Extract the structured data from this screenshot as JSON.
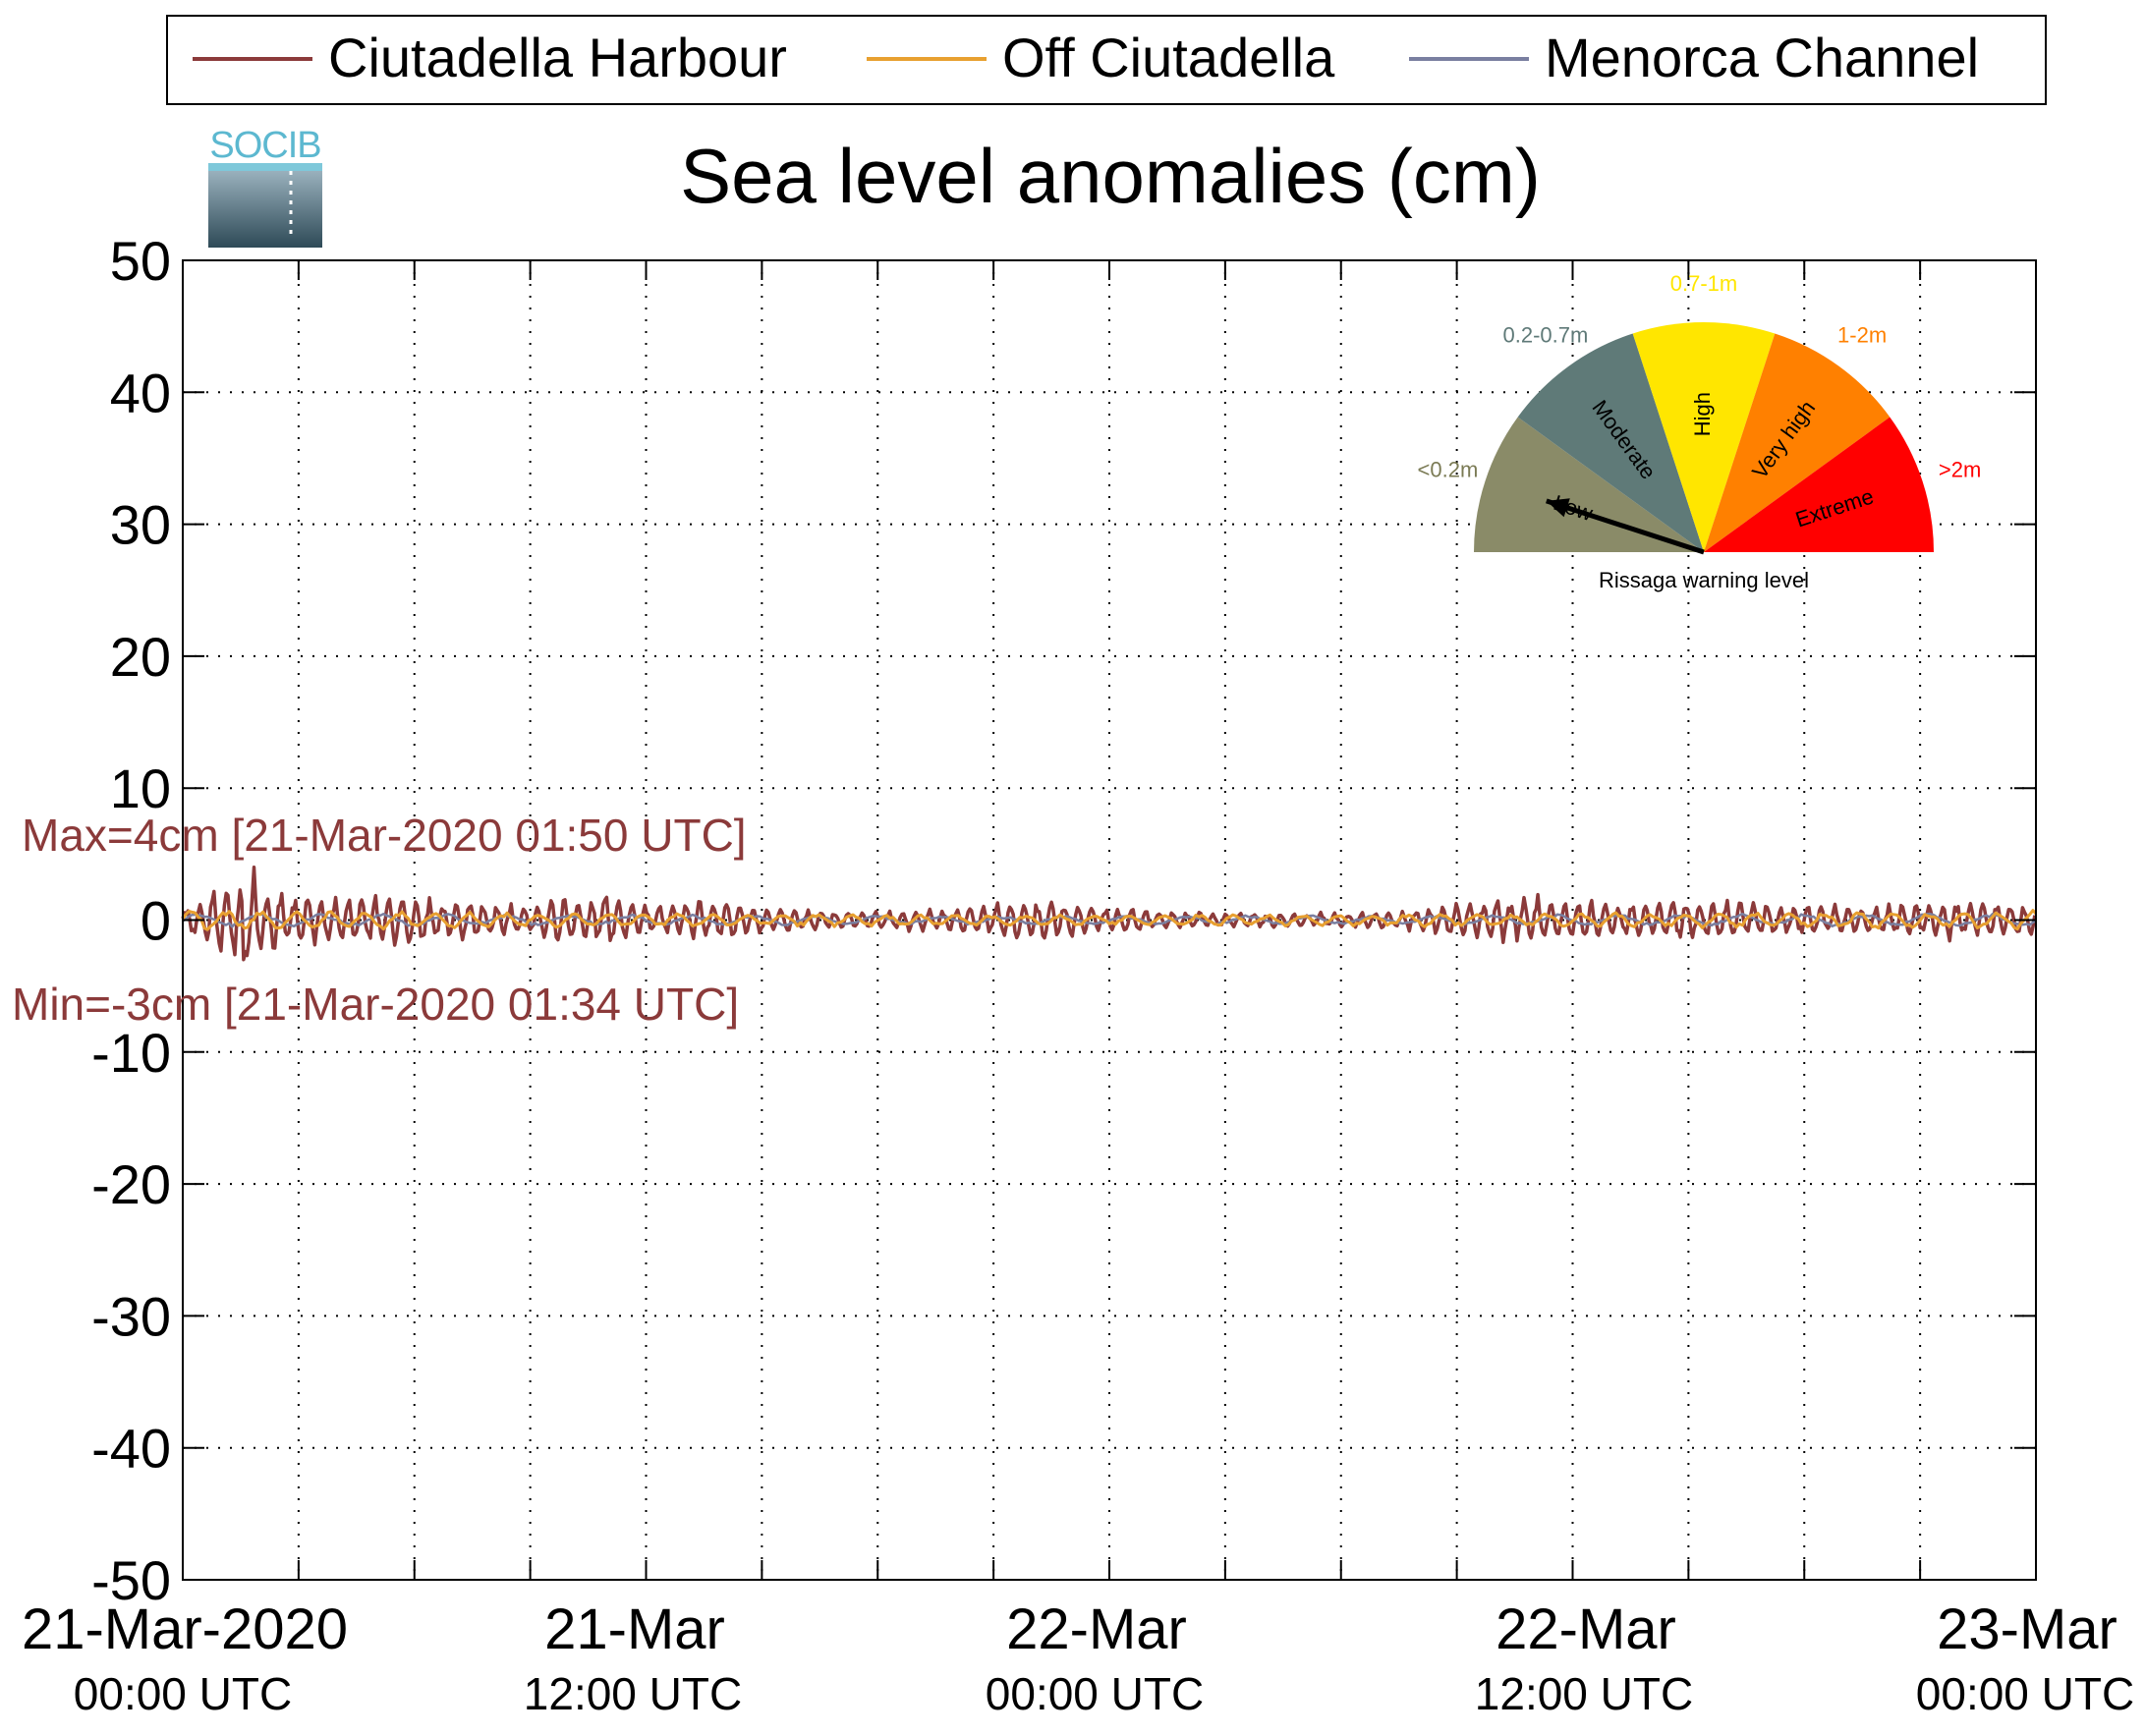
{
  "chart_data": {
    "type": "line",
    "title": "Sea level anomalies (cm)",
    "xlabel": "",
    "ylabel": "",
    "ylim": [
      -50,
      50
    ],
    "xlim": [
      "2020-03-21 00:00 UTC",
      "2020-03-23 00:00 UTC"
    ],
    "grid": true,
    "legend_position": "top",
    "yticks": [
      50,
      40,
      30,
      20,
      10,
      0,
      -10,
      -20,
      -30,
      -40,
      -50
    ],
    "ytick_labels": [
      "50",
      "40",
      "30",
      "20",
      "10",
      "0",
      "-10",
      "-20",
      "-30",
      "-40",
      "-50"
    ],
    "xtick_labels": [
      {
        "date": "21-Mar-2020",
        "time": "00:00 UTC"
      },
      {
        "date": "21-Mar",
        "time": "12:00 UTC"
      },
      {
        "date": "22-Mar",
        "time": "00:00 UTC"
      },
      {
        "date": "22-Mar",
        "time": "12:00 UTC"
      },
      {
        "date": "23-Mar",
        "time": "00:00 UTC"
      }
    ],
    "series": [
      {
        "name": "Ciutadella Harbour",
        "color": "#8b3a3a",
        "envelope_amplitude_cm": [
          [
            0.0,
            1.0
          ],
          [
            0.5,
            1.5
          ],
          [
            1.0,
            2.5
          ],
          [
            1.5,
            3.5
          ],
          [
            2.0,
            2.5
          ],
          [
            3.0,
            1.8
          ],
          [
            4.0,
            1.6
          ],
          [
            5.0,
            1.9
          ],
          [
            6.0,
            2.0
          ],
          [
            7.0,
            1.5
          ],
          [
            8.0,
            1.2
          ],
          [
            9.0,
            1.1
          ],
          [
            10.0,
            1.8
          ],
          [
            11.0,
            2.2
          ],
          [
            12.0,
            1.1
          ],
          [
            13.0,
            1.3
          ],
          [
            14.0,
            1.4
          ],
          [
            15.0,
            1.1
          ],
          [
            16.0,
            0.9
          ],
          [
            17.0,
            0.6
          ],
          [
            18.0,
            0.7
          ],
          [
            19.0,
            0.8
          ],
          [
            20.0,
            0.9
          ],
          [
            21.0,
            1.4
          ],
          [
            22.0,
            1.5
          ],
          [
            23.0,
            1.3
          ],
          [
            24.0,
            1.0
          ],
          [
            25.0,
            0.7
          ],
          [
            26.0,
            0.6
          ],
          [
            27.0,
            0.5
          ],
          [
            28.0,
            0.6
          ],
          [
            29.0,
            0.5
          ],
          [
            30.0,
            0.6
          ],
          [
            31.0,
            0.6
          ],
          [
            32.0,
            0.8
          ],
          [
            33.0,
            1.2
          ],
          [
            34.0,
            1.6
          ],
          [
            35.0,
            1.8
          ],
          [
            36.0,
            1.5
          ],
          [
            37.0,
            1.2
          ],
          [
            38.0,
            1.3
          ],
          [
            39.0,
            1.6
          ],
          [
            40.0,
            1.5
          ],
          [
            41.0,
            1.2
          ],
          [
            42.0,
            1.2
          ],
          [
            43.0,
            1.0
          ],
          [
            44.0,
            1.1
          ],
          [
            45.0,
            1.3
          ],
          [
            46.0,
            1.5
          ],
          [
            47.0,
            1.4
          ],
          [
            48.0,
            1.2
          ]
        ],
        "max_label": "Max=4cm [21-Mar-2020 01:50 UTC]",
        "min_label": "Min=-3cm [21-Mar-2020 01:34 UTC]",
        "max": {
          "value": 4,
          "time": "2020-03-21 01:50 UTC"
        },
        "min": {
          "value": -3,
          "time": "2020-03-21 01:34 UTC"
        }
      },
      {
        "name": "Off Ciutadella",
        "color": "#e8a030",
        "envelope_amplitude_cm": [
          [
            0,
            0.8
          ],
          [
            6,
            0.6
          ],
          [
            12,
            0.5
          ],
          [
            24,
            0.4
          ],
          [
            36,
            0.5
          ],
          [
            48,
            0.7
          ]
        ]
      },
      {
        "name": "Menorca Channel",
        "color": "#7a7fa0",
        "envelope_amplitude_cm": [
          [
            0,
            0.5
          ],
          [
            12,
            0.4
          ],
          [
            24,
            0.3
          ],
          [
            36,
            0.4
          ],
          [
            48,
            0.5
          ]
        ]
      }
    ]
  },
  "gauge": {
    "caption": "Rissaga warning level",
    "current_level": "Low",
    "needle_fraction": 0.1,
    "segments": [
      {
        "level": "Low",
        "range": "<0.2m",
        "color": "#8a8b68",
        "range_color": "#7b7b55"
      },
      {
        "level": "Moderate",
        "range": "0.2-0.7m",
        "color": "#5f7a78",
        "range_color": "#5f7a78"
      },
      {
        "level": "High",
        "range": "0.7-1m",
        "color": "#ffe600",
        "range_color": "#ffe600"
      },
      {
        "level": "Very high",
        "range": "1-2m",
        "color": "#ff8000",
        "range_color": "#ff8000"
      },
      {
        "level": "Extreme",
        "range": ">2m",
        "color": "#ff0000",
        "range_color": "#ff0000"
      }
    ]
  },
  "logo": {
    "text": "SOCIB",
    "color": "#5cb8d0"
  }
}
